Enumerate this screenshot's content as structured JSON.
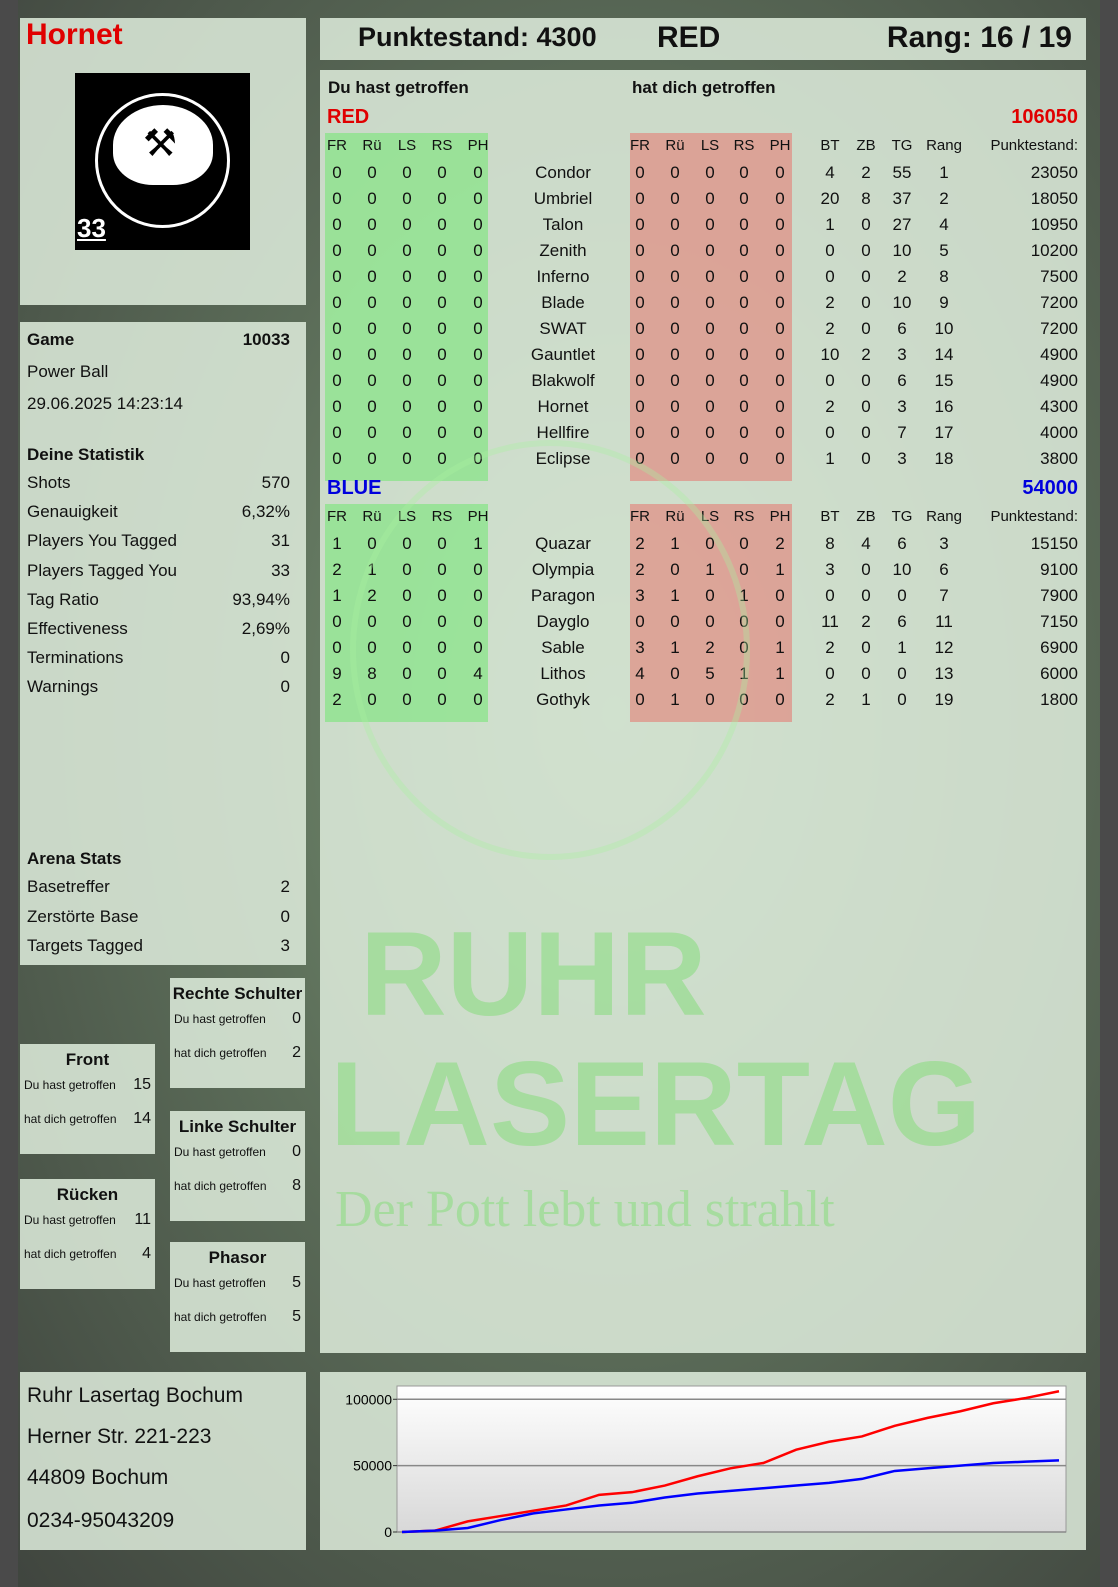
{
  "player": {
    "name": "Hornet",
    "logo_text": "RUHR LASERTAG",
    "logo_number": "33"
  },
  "header": {
    "score_label": "Punktestand: 4300",
    "team": "RED",
    "rank_label": "Rang: 16 / 19"
  },
  "game": {
    "label": "Game",
    "id": "10033",
    "mode": "Power Ball",
    "datetime": "29.06.2025 14:23:14"
  },
  "stats": {
    "title": "Deine Statistik",
    "items": [
      {
        "label": "Shots",
        "value": "570"
      },
      {
        "label": "Genauigkeit",
        "value": "6,32%"
      },
      {
        "label": "Players You Tagged",
        "value": "31"
      },
      {
        "label": "Players Tagged You",
        "value": "33"
      },
      {
        "label": "Tag Ratio",
        "value": "93,94%"
      },
      {
        "label": "Effectiveness",
        "value": "2,69%"
      },
      {
        "label": "Terminations",
        "value": "0"
      },
      {
        "label": "Warnings",
        "value": "0"
      }
    ]
  },
  "arena": {
    "title": "Arena Stats",
    "items": [
      {
        "label": "Basetreffer",
        "value": "2"
      },
      {
        "label": "Zerstörte Base",
        "value": "0"
      },
      {
        "label": "Targets Tagged",
        "value": "3"
      }
    ]
  },
  "hitzones": [
    {
      "title": "Front",
      "you_hit_label": "Du hast getroffen",
      "you_hit": "15",
      "hit_you_label": "hat dich getroffen",
      "hit_you": "14"
    },
    {
      "title": "Rücken",
      "you_hit_label": "Du hast getroffen",
      "you_hit": "11",
      "hit_you_label": "hat dich getroffen",
      "hit_you": "4"
    },
    {
      "title": "Rechte Schulter",
      "you_hit_label": "Du hast getroffen",
      "you_hit": "0",
      "hit_you_label": "hat dich getroffen",
      "hit_you": "2"
    },
    {
      "title": "Linke Schulter",
      "you_hit_label": "Du hast getroffen",
      "you_hit": "0",
      "hit_you_label": "hat dich getroffen",
      "hit_you": "8"
    },
    {
      "title": "Phasor",
      "you_hit_label": "Du hast getroffen",
      "you_hit": "5",
      "hit_you_label": "hat dich getroffen",
      "hit_you": "5"
    }
  ],
  "table": {
    "you_hit_title": "Du hast getroffen",
    "hit_you_title": "hat dich getroffen",
    "hit_columns": [
      "FR",
      "Rü",
      "LS",
      "RS",
      "PH"
    ],
    "stat_columns": [
      "BT",
      "ZB",
      "TG",
      "Rang",
      "Punktestand:"
    ],
    "teams": [
      {
        "name": "RED",
        "total": "106050",
        "color": "#e00000",
        "players": [
          {
            "you": [
              0,
              0,
              0,
              0,
              0
            ],
            "name": "Condor",
            "them": [
              0,
              0,
              0,
              0,
              0
            ],
            "stats": [
              4,
              2,
              55,
              1,
              23050
            ]
          },
          {
            "you": [
              0,
              0,
              0,
              0,
              0
            ],
            "name": "Umbriel",
            "them": [
              0,
              0,
              0,
              0,
              0
            ],
            "stats": [
              20,
              8,
              37,
              2,
              18050
            ]
          },
          {
            "you": [
              0,
              0,
              0,
              0,
              0
            ],
            "name": "Talon",
            "them": [
              0,
              0,
              0,
              0,
              0
            ],
            "stats": [
              1,
              0,
              27,
              4,
              10950
            ]
          },
          {
            "you": [
              0,
              0,
              0,
              0,
              0
            ],
            "name": "Zenith",
            "them": [
              0,
              0,
              0,
              0,
              0
            ],
            "stats": [
              0,
              0,
              10,
              5,
              10200
            ]
          },
          {
            "you": [
              0,
              0,
              0,
              0,
              0
            ],
            "name": "Inferno",
            "them": [
              0,
              0,
              0,
              0,
              0
            ],
            "stats": [
              0,
              0,
              2,
              8,
              7500
            ]
          },
          {
            "you": [
              0,
              0,
              0,
              0,
              0
            ],
            "name": "Blade",
            "them": [
              0,
              0,
              0,
              0,
              0
            ],
            "stats": [
              2,
              0,
              10,
              9,
              7200
            ]
          },
          {
            "you": [
              0,
              0,
              0,
              0,
              0
            ],
            "name": "SWAT",
            "them": [
              0,
              0,
              0,
              0,
              0
            ],
            "stats": [
              2,
              0,
              6,
              10,
              7200
            ]
          },
          {
            "you": [
              0,
              0,
              0,
              0,
              0
            ],
            "name": "Gauntlet",
            "them": [
              0,
              0,
              0,
              0,
              0
            ],
            "stats": [
              10,
              2,
              3,
              14,
              4900
            ]
          },
          {
            "you": [
              0,
              0,
              0,
              0,
              0
            ],
            "name": "Blakwolf",
            "them": [
              0,
              0,
              0,
              0,
              0
            ],
            "stats": [
              0,
              0,
              6,
              15,
              4900
            ]
          },
          {
            "you": [
              0,
              0,
              0,
              0,
              0
            ],
            "name": "Hornet",
            "them": [
              0,
              0,
              0,
              0,
              0
            ],
            "stats": [
              2,
              0,
              3,
              16,
              4300
            ]
          },
          {
            "you": [
              0,
              0,
              0,
              0,
              0
            ],
            "name": "Hellfire",
            "them": [
              0,
              0,
              0,
              0,
              0
            ],
            "stats": [
              0,
              0,
              7,
              17,
              4000
            ]
          },
          {
            "you": [
              0,
              0,
              0,
              0,
              0
            ],
            "name": "Eclipse",
            "them": [
              0,
              0,
              0,
              0,
              0
            ],
            "stats": [
              1,
              0,
              3,
              18,
              3800
            ]
          }
        ]
      },
      {
        "name": "BLUE",
        "total": "54000",
        "color": "#0000dd",
        "players": [
          {
            "you": [
              1,
              0,
              0,
              0,
              1
            ],
            "name": "Quazar",
            "them": [
              2,
              1,
              0,
              0,
              2
            ],
            "stats": [
              8,
              4,
              6,
              3,
              15150
            ]
          },
          {
            "you": [
              2,
              1,
              0,
              0,
              0
            ],
            "name": "Olympia",
            "them": [
              2,
              0,
              1,
              0,
              1
            ],
            "stats": [
              3,
              0,
              10,
              6,
              9100
            ]
          },
          {
            "you": [
              1,
              2,
              0,
              0,
              0
            ],
            "name": "Paragon",
            "them": [
              3,
              1,
              0,
              1,
              0
            ],
            "stats": [
              0,
              0,
              0,
              7,
              7900
            ]
          },
          {
            "you": [
              0,
              0,
              0,
              0,
              0
            ],
            "name": "Dayglo",
            "them": [
              0,
              0,
              0,
              0,
              0
            ],
            "stats": [
              11,
              2,
              6,
              11,
              7150
            ]
          },
          {
            "you": [
              0,
              0,
              0,
              0,
              0
            ],
            "name": "Sable",
            "them": [
              3,
              1,
              2,
              0,
              1
            ],
            "stats": [
              2,
              0,
              1,
              12,
              6900
            ]
          },
          {
            "you": [
              9,
              8,
              0,
              0,
              4
            ],
            "name": "Lithos",
            "them": [
              4,
              0,
              5,
              1,
              1
            ],
            "stats": [
              0,
              0,
              0,
              13,
              6000
            ]
          },
          {
            "you": [
              2,
              0,
              0,
              0,
              0
            ],
            "name": "Gothyk",
            "them": [
              0,
              1,
              0,
              0,
              0
            ],
            "stats": [
              2,
              1,
              0,
              19,
              1800
            ]
          }
        ]
      }
    ]
  },
  "address": {
    "line1": "Ruhr Lasertag Bochum",
    "line2": "Herner Str. 221-223",
    "line3": "44809 Bochum",
    "phone": "0234-95043209"
  },
  "watermark": {
    "line1": "RUHR",
    "line2": "LASERTAG",
    "slogan": "Der Pott lebt und strahlt"
  },
  "chart_data": {
    "type": "line",
    "ylim": [
      0,
      110000
    ],
    "yticks": [
      "100000",
      "50000",
      "0"
    ],
    "grid": true,
    "series": [
      {
        "color": "#ff0000",
        "values": [
          0,
          1000,
          8000,
          12000,
          16000,
          20000,
          28000,
          30000,
          35000,
          42000,
          48000,
          52000,
          62000,
          68000,
          72000,
          80000,
          86000,
          91000,
          97000,
          101000,
          106050
        ]
      },
      {
        "color": "#0000ff",
        "values": [
          0,
          1000,
          3000,
          9000,
          14000,
          17000,
          20000,
          22000,
          26000,
          29000,
          31000,
          33000,
          35000,
          37000,
          40000,
          46000,
          48000,
          50000,
          52000,
          53000,
          54000
        ]
      }
    ]
  }
}
